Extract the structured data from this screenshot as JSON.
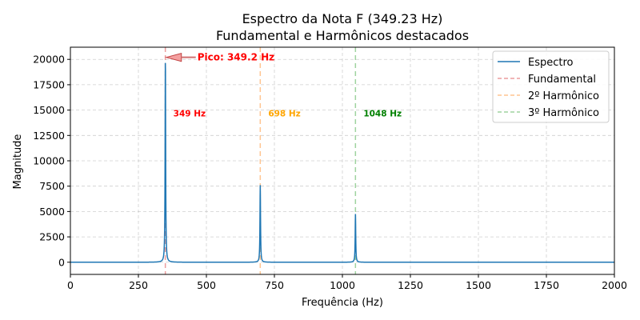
{
  "chart_data": {
    "type": "line",
    "title": "Espectro da Nota F (349.23 Hz)",
    "subtitle": "Fundamental e Harmônicos destacados",
    "xlabel": "Frequência (Hz)",
    "ylabel": "Magnitude",
    "xlim": [
      0,
      2000
    ],
    "ylim": [
      -1200,
      21200
    ],
    "xticks": [
      0,
      250,
      500,
      750,
      1000,
      1250,
      1500,
      1750,
      2000
    ],
    "yticks": [
      0,
      2500,
      5000,
      7500,
      10000,
      12500,
      15000,
      17500,
      20000
    ],
    "grid": true,
    "legend_position": "top-right",
    "series": [
      {
        "name": "Espectro",
        "color": "#1f77b4",
        "style": "solid",
        "peaks": [
          {
            "x": 349.2,
            "y": 20200
          },
          {
            "x": 698,
            "y": 7600
          },
          {
            "x": 1048,
            "y": 4750
          }
        ]
      }
    ],
    "reference_lines": [
      {
        "name": "Fundamental",
        "x": 349,
        "color": "#d62728",
        "label": "349 Hz",
        "label_color": "#ff0000"
      },
      {
        "name": "2º Harmônico",
        "x": 698,
        "color": "#ff7f0e",
        "label": "698 Hz",
        "label_color": "#ffa500"
      },
      {
        "name": "3º Harmônico",
        "x": 1048,
        "color": "#2ca02c",
        "label": "1048 Hz",
        "label_color": "#008000"
      }
    ],
    "annotations": [
      {
        "text": "Pico: 349.2 Hz",
        "x": 349.2,
        "y": 20200,
        "color": "#ff0000"
      }
    ]
  }
}
